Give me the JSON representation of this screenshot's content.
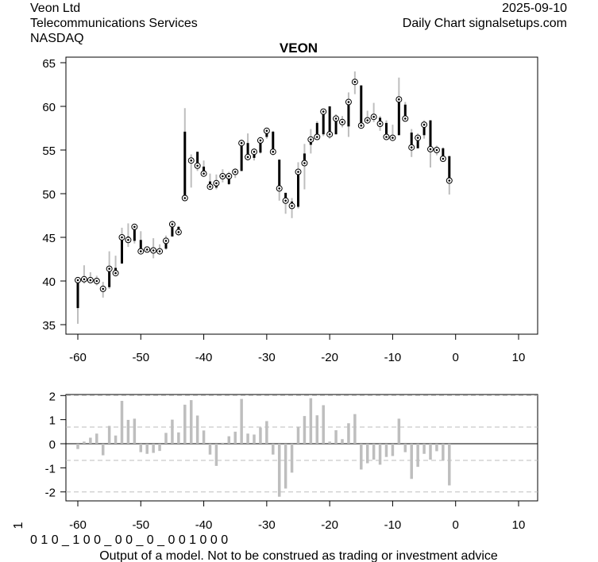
{
  "header": {
    "company": "Veon Ltd",
    "sector": "Telecommunications Services",
    "exchange": "NASDAQ",
    "date": "2025-09-10",
    "source": "Daily Chart signalsetups.com"
  },
  "footer": {
    "rotated_label": "1",
    "signal_string": "0 1 0 _ 1 0 0 _ 0 0 _ 0 _ 0 0 1 0 0 0",
    "disclaimer": "Output of a model. Not to be construed as trading or investment advice"
  },
  "chart_data": [
    {
      "type": "ohlc",
      "title": "VEON",
      "xlim": [
        -62,
        13
      ],
      "ylim": [
        34,
        65.6
      ],
      "x_ticks": [
        -60,
        -50,
        -40,
        -30,
        -20,
        -10,
        0,
        10
      ],
      "y_ticks": [
        35,
        40,
        45,
        50,
        55,
        60,
        65
      ],
      "colors": {
        "body": "#000000",
        "wick": "#bebebe"
      },
      "x": [
        -60,
        -59,
        -58,
        -57,
        -56,
        -55,
        -54,
        -53,
        -52,
        -51,
        -50,
        -49,
        -48,
        -47,
        -46,
        -45,
        -44,
        -43,
        -42,
        -41,
        -40,
        -39,
        -38,
        -37,
        -36,
        -35,
        -34,
        -33,
        -32,
        -31,
        -30,
        -29,
        -28,
        -27,
        -26,
        -25,
        -24,
        -23,
        -22,
        -21,
        -20,
        -19,
        -18,
        -17,
        -16,
        -15,
        -14,
        -13,
        -12,
        -11,
        -10,
        -9,
        -8,
        -7,
        -6,
        -5,
        -4,
        -3,
        -2,
        -1
      ],
      "open": [
        36.9,
        40.1,
        40.1,
        40.0,
        39.2,
        39.3,
        41.5,
        42.0,
        45.1,
        44.6,
        44.7,
        43.8,
        43.7,
        43.6,
        43.7,
        45.1,
        46.2,
        57.1,
        54.0,
        54.8,
        53.1,
        51.4,
        50.7,
        52.3,
        51.1,
        52.5,
        52.6,
        55.8,
        54.1,
        54.7,
        56.5,
        57.1,
        53.9,
        50.1,
        49.1,
        48.5,
        54.6,
        55.6,
        58.1,
        56.8,
        60.0,
        56.8,
        58.5,
        57.7,
        63.0,
        62.4,
        58.5,
        59.0,
        58.7,
        58.1,
        56.5,
        56.7,
        60.2,
        57.0,
        55.2,
        56.7,
        58.4,
        54.7,
        55.2,
        54.3
      ],
      "high": [
        40.3,
        41.8,
        41.0,
        40.6,
        39.9,
        43.4,
        42.9,
        46.1,
        46.6,
        46.4,
        45.7,
        43.9,
        44.9,
        44.2,
        45.2,
        46.9,
        46.3,
        59.8,
        54.5,
        54.8,
        53.8,
        52.3,
        52.2,
        52.8,
        52.5,
        52.9,
        56.2,
        56.9,
        55.2,
        56.5,
        57.5,
        57.2,
        53.9,
        50.1,
        49.5,
        53.6,
        55.7,
        57.4,
        58.3,
        59.6,
        60.0,
        59.1,
        58.9,
        61.6,
        64.0,
        62.4,
        59.5,
        60.4,
        58.9,
        58.4,
        57.9,
        63.3,
        60.5,
        57.4,
        56.9,
        58.4,
        58.4,
        55.5,
        55.3,
        54.3
      ],
      "low": [
        35.1,
        39.7,
        39.8,
        39.5,
        38.1,
        39.1,
        40.7,
        42.0,
        43.9,
        44.3,
        43.1,
        43.3,
        42.6,
        43.1,
        43.6,
        45.1,
        45.2,
        49.2,
        50.7,
        52.6,
        52.0,
        50.5,
        50.5,
        51.3,
        51.0,
        51.8,
        52.6,
        53.8,
        53.8,
        54.6,
        56.3,
        54.4,
        49.2,
        47.7,
        47.2,
        48.3,
        50.5,
        54.6,
        56.5,
        56.6,
        56.3,
        56.8,
        57.6,
        56.5,
        61.4,
        57.5,
        58.0,
        58.2,
        57.2,
        56.3,
        56.1,
        56.7,
        58.4,
        54.2,
        55.2,
        56.3,
        53.0,
        54.4,
        53.9,
        49.9
      ],
      "close": [
        40.1,
        40.2,
        40.1,
        40.0,
        39.1,
        41.4,
        40.9,
        45.0,
        44.7,
        46.2,
        43.4,
        43.6,
        43.5,
        43.4,
        44.6,
        46.5,
        45.6,
        49.5,
        53.8,
        53.2,
        52.3,
        50.8,
        51.2,
        52.0,
        52.0,
        52.5,
        55.8,
        54.2,
        54.8,
        56.1,
        57.2,
        54.8,
        50.6,
        49.2,
        48.6,
        52.5,
        53.5,
        56.2,
        56.5,
        59.4,
        56.8,
        58.6,
        58.2,
        60.5,
        62.8,
        57.8,
        58.4,
        58.8,
        58.0,
        56.5,
        56.4,
        60.8,
        58.6,
        55.3,
        56.4,
        57.9,
        55.1,
        55.0,
        54.0,
        51.5
      ]
    },
    {
      "type": "bar",
      "title": "",
      "xlim": [
        -62,
        13
      ],
      "ylim": [
        -2.25,
        2.05
      ],
      "x_ticks": [
        -60,
        -50,
        -40,
        -30,
        -20,
        -10,
        0,
        10
      ],
      "y_ticks": [
        -2,
        -1,
        0,
        1,
        2
      ],
      "reference_lines": [
        -2,
        -0.69,
        0.69,
        2
      ],
      "colors": {
        "bar": "#bebebe",
        "zero_line": "#000000",
        "dashed": "#bebebe"
      },
      "x": [
        -60,
        -59,
        -58,
        -57,
        -56,
        -55,
        -54,
        -53,
        -52,
        -51,
        -50,
        -49,
        -48,
        -47,
        -46,
        -45,
        -44,
        -43,
        -42,
        -41,
        -40,
        -39,
        -38,
        -37,
        -36,
        -35,
        -34,
        -33,
        -32,
        -31,
        -30,
        -29,
        -28,
        -27,
        -26,
        -25,
        -24,
        -23,
        -22,
        -21,
        -20,
        -19,
        -18,
        -17,
        -16,
        -15,
        -14,
        -13,
        -12,
        -11,
        -10,
        -9,
        -8,
        -7,
        -6,
        -5,
        -4,
        -3,
        -2,
        -1
      ],
      "values": [
        -0.22,
        0.09,
        0.25,
        0.42,
        -0.48,
        0.74,
        0.34,
        1.78,
        0.99,
        1.04,
        -0.35,
        -0.42,
        -0.38,
        -0.3,
        0.45,
        1.0,
        0.47,
        1.62,
        1.81,
        1.17,
        0.55,
        -0.45,
        -0.92,
        0.04,
        0.31,
        0.5,
        1.86,
        0.42,
        0.38,
        0.67,
        0.94,
        -0.45,
        -2.2,
        -1.86,
        -1.2,
        0.71,
        1.15,
        1.89,
        1.18,
        1.6,
        0.09,
        0.56,
        0.19,
        0.85,
        1.23,
        -1.07,
        -0.81,
        -0.66,
        -0.87,
        -0.55,
        -0.51,
        1.04,
        -0.35,
        -1.46,
        -0.96,
        -0.42,
        -0.66,
        -0.31,
        -0.7,
        -1.73
      ]
    }
  ]
}
